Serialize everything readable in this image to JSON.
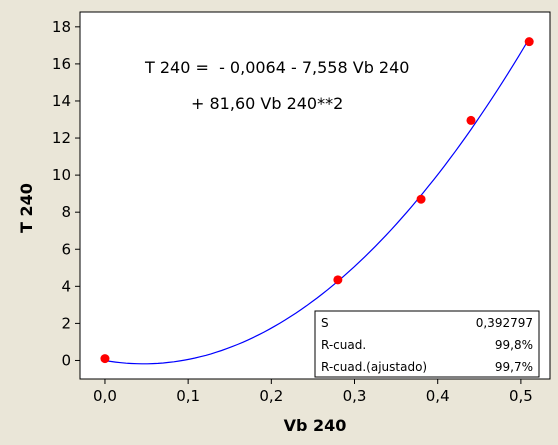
{
  "chart_data": {
    "type": "scatter",
    "title": "",
    "xlabel": "Vb 240",
    "ylabel": "T 240",
    "xlim": [
      -0.03,
      0.535
    ],
    "ylim": [
      -1.0,
      18.8
    ],
    "xticks": [
      0.0,
      0.1,
      0.2,
      0.3,
      0.4,
      0.5
    ],
    "xtick_labels": [
      "0,0",
      "0,1",
      "0,2",
      "0,3",
      "0,4",
      "0,5"
    ],
    "yticks": [
      0,
      2,
      4,
      6,
      8,
      10,
      12,
      14,
      16,
      18
    ],
    "ytick_labels": [
      "0",
      "2",
      "4",
      "6",
      "8",
      "10",
      "12",
      "14",
      "16",
      "18"
    ],
    "grid": false,
    "series": [
      {
        "kind": "points",
        "color": "#ff0000",
        "x": [
          0.0,
          0.28,
          0.38,
          0.44,
          0.51
        ],
        "y": [
          0.1,
          4.35,
          8.7,
          12.95,
          17.2
        ]
      },
      {
        "kind": "fitted-line",
        "color": "#0000ff",
        "coefficients": {
          "intercept": -0.0064,
          "linear": -7.558,
          "quadratic": 81.6
        },
        "x_range": [
          0.0,
          0.51
        ]
      }
    ],
    "equation": {
      "line1": "T 240 =  - 0,0064 - 7,558 Vb 240",
      "line2": "+ 81,60 Vb 240**2"
    },
    "stats_table": {
      "rows": [
        {
          "label": "S",
          "value": "0,392797"
        },
        {
          "label": "R-cuad.",
          "value": "99,8%"
        },
        {
          "label": "R-cuad.(ajustado)",
          "value": "99,7%"
        }
      ]
    }
  }
}
